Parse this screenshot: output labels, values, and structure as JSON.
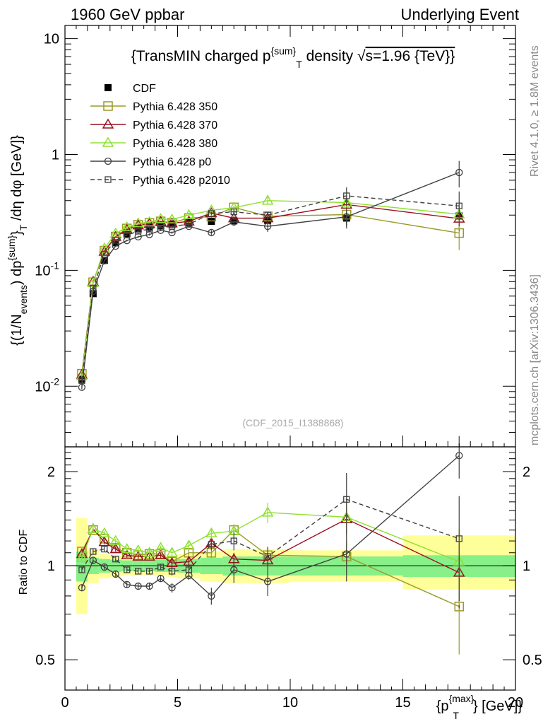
{
  "header": {
    "left": "1960 GeV ppbar",
    "right": "Underlying Event"
  },
  "side_labels": {
    "rivet": "Rivet 4.1.0, ≥ 1.8M events",
    "mcplots": "mcplots.cern.ch [arXiv:1306.3436]"
  },
  "colors": {
    "cdf": "#000000",
    "p350": "#9a9a2a",
    "p370": "#9a1020",
    "p380": "#8ee030",
    "p0": "#404040",
    "p2010": "#404040",
    "band_inner": "#88f088",
    "band_outer": "#ffff99"
  },
  "chart_data": [
    {
      "type": "line",
      "title": "{TransMIN charged p^{sum}_T density √s=1.96 {TeV}}",
      "title_parts": {
        "a": "{TransMIN charged p",
        "sup": "{sum}",
        "sub": "T",
        "b": " density √",
        "c": "s=1.96 {TeV}}"
      },
      "ylabel": "{(1/N_events) dp^{sum}_T /dη dφ [GeV]}",
      "ylabel_parts": {
        "a": "{(1/N",
        "sub1": "events",
        "b": ") dp",
        "sup": "{sum}",
        "c": "}",
        "sub2": "T",
        "d": " /dη  dφ [GeV]}"
      },
      "yscale": "log",
      "ylim": [
        0.003,
        13
      ],
      "xlim": [
        0,
        20
      ],
      "ytick_labels": [
        "10^-2",
        "10^-1",
        "1",
        "10"
      ],
      "watermark": "(CDF_2015_I1388868)",
      "legend_position": "top-left",
      "x": [
        0.75,
        1.25,
        1.75,
        2.25,
        2.75,
        3.25,
        3.75,
        4.25,
        4.75,
        5.5,
        6.5,
        7.5,
        9.0,
        12.5,
        17.5
      ],
      "series": [
        {
          "name": "CDF",
          "key": "cdf",
          "marker": "filled-square",
          "values": [
            0.0115,
            0.063,
            0.122,
            0.173,
            0.208,
            0.228,
            0.236,
            0.243,
            0.25,
            0.258,
            0.265,
            0.268,
            0.27,
            0.283,
            0.295
          ],
          "errors": [
            0.0012,
            0.004,
            0.006,
            0.008,
            0.009,
            0.009,
            0.01,
            0.011,
            0.012,
            0.014,
            0.018,
            0.025,
            0.035,
            0.04,
            0.07
          ]
        },
        {
          "name": "Pythia 6.428 350",
          "key": "p350",
          "marker": "open-square",
          "line": "solid",
          "values": [
            0.0128,
            0.079,
            0.148,
            0.196,
            0.23,
            0.248,
            0.257,
            0.265,
            0.258,
            0.283,
            0.291,
            0.35,
            0.293,
            0.303,
            0.21
          ],
          "errors": [
            0.0005,
            0.002,
            0.003,
            0.003,
            0.003,
            0.004,
            0.004,
            0.004,
            0.005,
            0.006,
            0.008,
            0.012,
            0.015,
            0.03,
            0.06
          ]
        },
        {
          "name": "Pythia 6.428 370",
          "key": "p370",
          "marker": "open-triangle",
          "line": "solid",
          "values": [
            0.0126,
            0.08,
            0.145,
            0.195,
            0.224,
            0.245,
            0.252,
            0.263,
            0.255,
            0.265,
            0.312,
            0.282,
            0.282,
            0.37,
            0.28
          ],
          "errors": [
            0.0005,
            0.002,
            0.003,
            0.003,
            0.003,
            0.004,
            0.004,
            0.004,
            0.005,
            0.006,
            0.008,
            0.012,
            0.015,
            0.03,
            0.06
          ]
        },
        {
          "name": "Pythia 6.428 380",
          "key": "p380",
          "marker": "open-triangle",
          "line": "solid",
          "values": [
            0.0122,
            0.078,
            0.155,
            0.208,
            0.236,
            0.255,
            0.261,
            0.278,
            0.275,
            0.3,
            0.33,
            0.348,
            0.4,
            0.385,
            0.305
          ],
          "errors": [
            0.0005,
            0.002,
            0.003,
            0.003,
            0.003,
            0.004,
            0.004,
            0.004,
            0.005,
            0.006,
            0.01,
            0.015,
            0.03,
            0.05,
            0.08
          ]
        },
        {
          "name": "Pythia 6.428 p0",
          "key": "p0",
          "marker": "open-circle",
          "line": "solid",
          "values": [
            0.0098,
            0.066,
            0.121,
            0.162,
            0.181,
            0.195,
            0.204,
            0.222,
            0.212,
            0.24,
            0.212,
            0.262,
            0.24,
            0.29,
            0.7
          ],
          "errors": [
            0.0004,
            0.002,
            0.003,
            0.003,
            0.003,
            0.004,
            0.004,
            0.004,
            0.005,
            0.006,
            0.01,
            0.02,
            0.025,
            0.06,
            0.18
          ]
        },
        {
          "name": "Pythia 6.428 p2010",
          "key": "p2010",
          "marker": "small-open-square",
          "line": "dashed",
          "values": [
            0.0112,
            0.07,
            0.138,
            0.182,
            0.202,
            0.218,
            0.227,
            0.24,
            0.24,
            0.25,
            0.31,
            0.32,
            0.3,
            0.44,
            0.36
          ],
          "errors": [
            0.0005,
            0.002,
            0.003,
            0.003,
            0.003,
            0.004,
            0.004,
            0.004,
            0.005,
            0.006,
            0.01,
            0.015,
            0.02,
            0.08,
            0.12
          ]
        }
      ]
    },
    {
      "type": "line",
      "ylabel": "Ratio to CDF",
      "yscale": "log",
      "ylim": [
        0.4,
        2.4
      ],
      "xlim": [
        0,
        20
      ],
      "ytick_labels": [
        "0.5",
        "1",
        "2"
      ],
      "xtick_labels": [
        "0",
        "5",
        "10",
        "15",
        "20"
      ],
      "xlabel": "{p_T^{max}} [GeV]}",
      "xlabel_parts": {
        "a": "{p",
        "sup": "{max}",
        "sub": "T",
        "b": "} [GeV]}"
      },
      "band_bins": [
        0.5,
        1.0,
        1.5,
        2.0,
        2.5,
        3.0,
        3.5,
        4.0,
        4.5,
        5.0,
        6.0,
        7.0,
        8.0,
        10.0,
        15.0,
        20.0
      ],
      "band_inner": [
        [
          0.89,
          1.11
        ],
        [
          0.94,
          1.06
        ],
        [
          0.95,
          1.05
        ],
        [
          0.955,
          1.045
        ],
        [
          0.96,
          1.04
        ],
        [
          0.96,
          1.04
        ],
        [
          0.96,
          1.04
        ],
        [
          0.955,
          1.045
        ],
        [
          0.955,
          1.045
        ],
        [
          0.95,
          1.05
        ],
        [
          0.94,
          1.06
        ],
        [
          0.93,
          1.07
        ],
        [
          0.93,
          1.07
        ],
        [
          0.93,
          1.07
        ],
        [
          0.92,
          1.08
        ]
      ],
      "band_outer": [
        [
          0.7,
          1.42
        ],
        [
          0.88,
          1.13
        ],
        [
          0.91,
          1.09
        ],
        [
          0.92,
          1.08
        ],
        [
          0.93,
          1.07
        ],
        [
          0.93,
          1.07
        ],
        [
          0.93,
          1.07
        ],
        [
          0.93,
          1.07
        ],
        [
          0.92,
          1.08
        ],
        [
          0.91,
          1.09
        ],
        [
          0.89,
          1.11
        ],
        [
          0.88,
          1.13
        ],
        [
          0.88,
          1.13
        ],
        [
          0.89,
          1.12
        ],
        [
          0.84,
          1.25
        ]
      ],
      "series": [
        {
          "key": "p350",
          "values": [
            1.11,
            1.3,
            1.22,
            1.14,
            1.1,
            1.08,
            1.09,
            1.09,
            1.03,
            1.1,
            1.1,
            1.3,
            1.08,
            1.07,
            0.74
          ],
          "errors": [
            0.02,
            0.02,
            0.02,
            0.02,
            0.02,
            0.02,
            0.02,
            0.02,
            0.03,
            0.03,
            0.04,
            0.05,
            0.06,
            0.12,
            0.22
          ]
        },
        {
          "key": "p370",
          "values": [
            1.09,
            1.31,
            1.19,
            1.13,
            1.08,
            1.07,
            1.07,
            1.08,
            1.02,
            1.03,
            1.18,
            1.05,
            1.04,
            1.41,
            0.95
          ],
          "errors": [
            0.02,
            0.02,
            0.02,
            0.02,
            0.02,
            0.02,
            0.02,
            0.02,
            0.03,
            0.03,
            0.04,
            0.05,
            0.06,
            0.12,
            0.22
          ]
        },
        {
          "key": "p380",
          "values": [
            1.06,
            1.31,
            1.27,
            1.2,
            1.13,
            1.12,
            1.1,
            1.14,
            1.1,
            1.16,
            1.27,
            1.29,
            1.48,
            1.43,
            1.03
          ],
          "errors": [
            0.02,
            0.02,
            0.02,
            0.02,
            0.02,
            0.02,
            0.02,
            0.02,
            0.03,
            0.03,
            0.05,
            0.07,
            0.11,
            0.18,
            0.28
          ]
        },
        {
          "key": "p0",
          "values": [
            0.85,
            1.04,
            0.99,
            0.94,
            0.87,
            0.86,
            0.86,
            0.91,
            0.85,
            0.93,
            0.8,
            0.97,
            0.89,
            1.09,
            2.25
          ],
          "errors": [
            0.02,
            0.02,
            0.02,
            0.02,
            0.02,
            0.02,
            0.02,
            0.02,
            0.03,
            0.03,
            0.05,
            0.09,
            0.09,
            0.2,
            0.35
          ]
        },
        {
          "key": "p2010",
          "values": [
            0.97,
            1.11,
            1.13,
            1.05,
            0.97,
            0.96,
            0.96,
            0.99,
            0.96,
            0.97,
            1.17,
            1.2,
            1.07,
            1.63,
            1.22
          ],
          "errors": [
            0.02,
            0.02,
            0.02,
            0.02,
            0.02,
            0.02,
            0.02,
            0.02,
            0.03,
            0.03,
            0.05,
            0.08,
            0.08,
            0.35,
            0.45
          ]
        }
      ]
    }
  ]
}
